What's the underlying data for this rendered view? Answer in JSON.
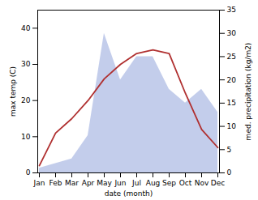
{
  "chart_data": {
    "type": "line",
    "xlabel": "date (month)",
    "ylabel": "max temp (C)",
    "y2label": "med. precipitation (kg/m2)",
    "categories": [
      "Jan",
      "Feb",
      "Mar",
      "Apr",
      "May",
      "Jun",
      "Jul",
      "Aug",
      "Sep",
      "Oct",
      "Nov",
      "Dec"
    ],
    "series": [
      {
        "type": "area",
        "axis": "y2",
        "color": "#b8c4e8",
        "values": [
          1,
          2,
          3,
          8,
          30,
          20,
          25,
          25,
          18,
          15,
          18,
          13
        ]
      },
      {
        "type": "line",
        "color": "#b03030",
        "values": [
          2,
          11,
          15,
          20,
          26,
          30,
          33,
          34,
          33,
          22,
          12,
          7
        ]
      }
    ],
    "ylim": [
      0,
      45
    ],
    "yticks": [
      0,
      10,
      20,
      30,
      40
    ],
    "y2lim": [
      0,
      35
    ],
    "y2ticks": [
      0,
      5,
      10,
      15,
      20,
      25,
      30,
      35
    ],
    "grid": false
  }
}
